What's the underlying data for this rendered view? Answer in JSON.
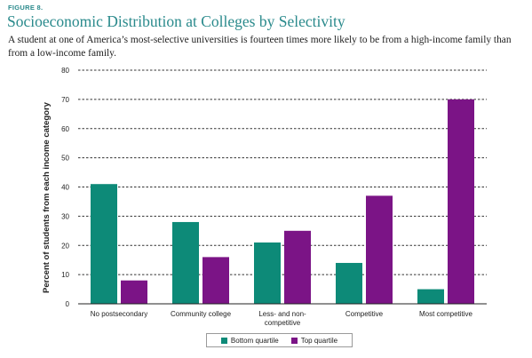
{
  "figure_label": "FIGURE 8.",
  "title": "Socioeconomic Distribution at Colleges by Selectivity",
  "subtitle": "A student at one of America’s most-selective universities is fourteen times more likely to be from a high-income family than from a low-income family.",
  "chart_data": {
    "type": "bar",
    "categories": [
      "No postsecondary",
      "Community college",
      "Less- and non-competitive",
      "Competitive",
      "Most competitive"
    ],
    "category_lines": [
      [
        "No postsecondary"
      ],
      [
        "Community college"
      ],
      [
        "Less- and non-",
        "competitive"
      ],
      [
        "Competitive"
      ],
      [
        "Most competitive"
      ]
    ],
    "series": [
      {
        "name": "Bottom quartile",
        "values": [
          41,
          28,
          21,
          14,
          5
        ],
        "color": "#0d8a78"
      },
      {
        "name": "Top quartile",
        "values": [
          8,
          16,
          25,
          37,
          70
        ],
        "color": "#7b1486"
      }
    ],
    "ylabel": "Percent of students from each income category",
    "ylim": [
      0,
      80
    ],
    "yticks": [
      0,
      10,
      20,
      30,
      40,
      50,
      60,
      70,
      80
    ],
    "grid": true,
    "legend_position": "bottom-center"
  }
}
